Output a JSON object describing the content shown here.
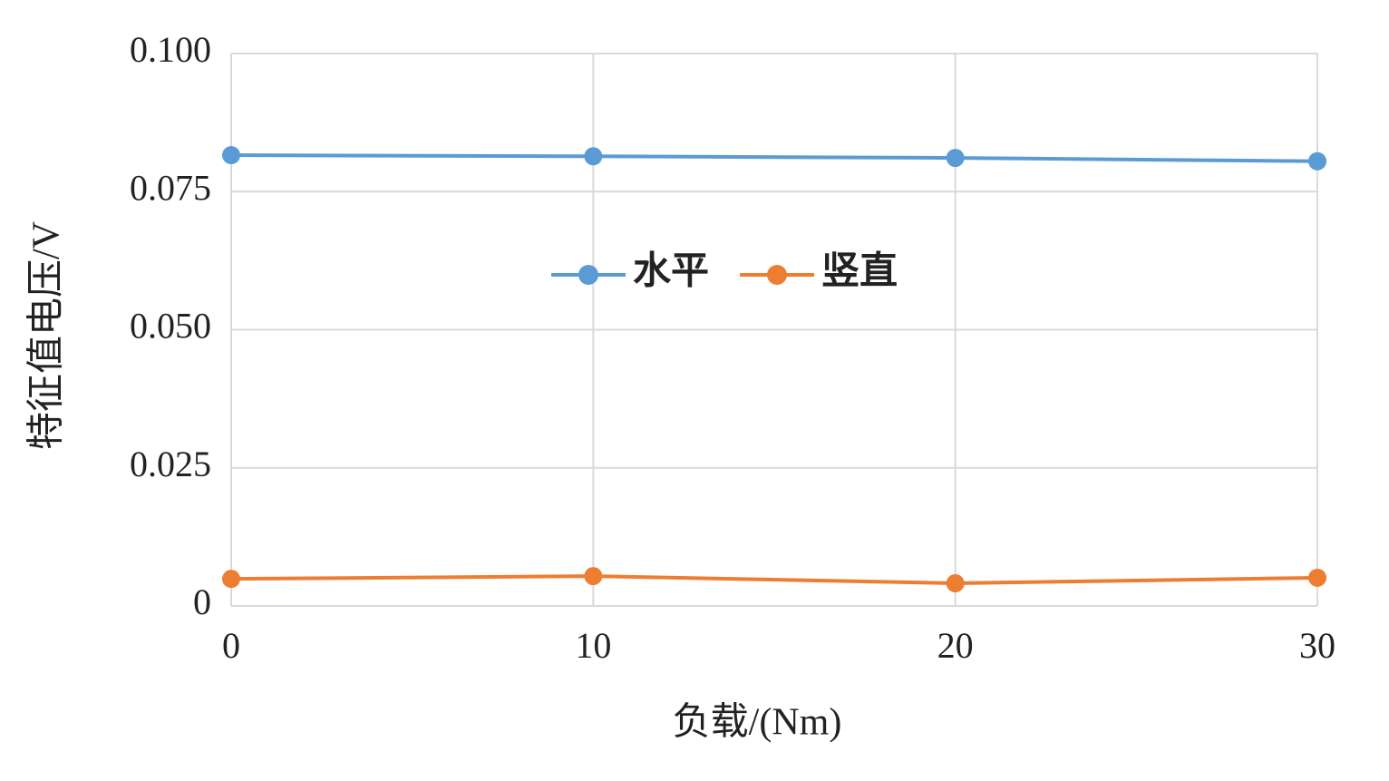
{
  "chart_data": {
    "type": "line",
    "x_label": "负载/(Nm)",
    "y_label": "特征值电压/V",
    "x": [
      0,
      10,
      20,
      30
    ],
    "xlim": [
      0,
      30
    ],
    "xticks": [
      0,
      10,
      20,
      30
    ],
    "ylim": [
      0,
      0.1
    ],
    "yticks": [
      0,
      0.025,
      {
        "value": 0.05,
        "label": "0.050"
      },
      0.075,
      {
        "value": 0.1,
        "label": "0.100"
      }
    ],
    "grid": true,
    "legend": "center",
    "series": [
      {
        "name": "水平",
        "color": "#5b9bd5",
        "values": [
          0.0816,
          0.0814,
          0.0811,
          0.0805
        ]
      },
      {
        "name": "竖直",
        "color": "#ed7d31",
        "values": [
          0.0049,
          0.0054,
          0.0041,
          0.0051
        ]
      }
    ]
  }
}
